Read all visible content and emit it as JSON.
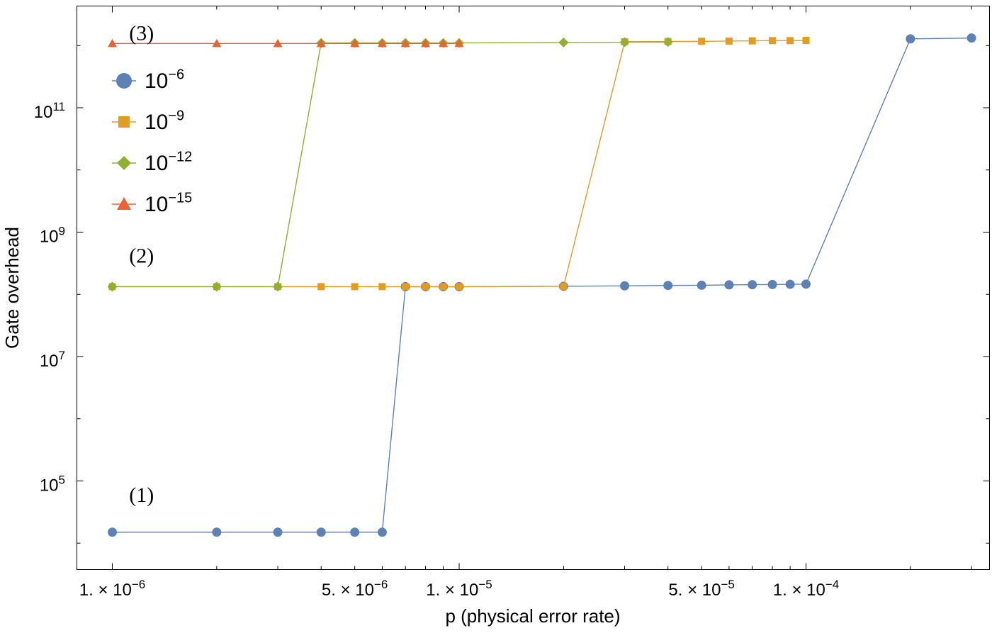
{
  "chart_data": {
    "type": "line",
    "title": "",
    "xlabel": "p (physical error rate)",
    "ylabel": "Gate overhead",
    "x_scale": "log",
    "y_scale": "log",
    "xlim": [
      9e-07,
      0.00035
    ],
    "ylim": [
      1000,
      10000000000000.0
    ],
    "grid": false,
    "legend_position": "top-left",
    "x_ticks": [
      {
        "value": 1e-06,
        "label": "1. × 10",
        "sup": "−6"
      },
      {
        "value": 5e-06,
        "label": "5. × 10",
        "sup": "−6"
      },
      {
        "value": 1e-05,
        "label": "1. × 10",
        "sup": "−5"
      },
      {
        "value": 5e-05,
        "label": "5. × 10",
        "sup": "−5"
      },
      {
        "value": 0.0001,
        "label": "1. × 10",
        "sup": "−4"
      }
    ],
    "y_ticks": [
      {
        "value": 100000.0,
        "label": "10",
        "sup": "5"
      },
      {
        "value": 10000000.0,
        "label": "10",
        "sup": "7"
      },
      {
        "value": 1000000000.0,
        "label": "10",
        "sup": "9"
      },
      {
        "value": 100000000000.0,
        "label": "10",
        "sup": "11"
      }
    ],
    "annotations": [
      {
        "text": "(1)",
        "x": 1.2e-06,
        "y": 60000.0
      },
      {
        "text": "(2)",
        "x": 1.2e-06,
        "y": 420000000.0
      },
      {
        "text": "(3)",
        "x": 1.2e-06,
        "y": 1600000000000.0
      }
    ],
    "series": [
      {
        "name": "10",
        "name_sup": "−6",
        "color": "#5E81B5",
        "marker": "circle",
        "x": [
          1e-06,
          2e-06,
          3e-06,
          4e-06,
          5e-06,
          6e-06,
          7e-06,
          8e-06,
          9e-06,
          1e-05,
          2e-05,
          3e-05,
          4e-05,
          5e-05,
          6e-05,
          7e-05,
          8e-05,
          9e-05,
          0.0001,
          0.0002,
          0.0003
        ],
        "y": [
          15000.0,
          15000.0,
          15000.0,
          15000.0,
          15000.0,
          15000.0,
          133000000.0,
          133000000.0,
          133000000.0,
          133000000.0,
          135000000.0,
          137000000.0,
          139000000.0,
          140000000.0,
          142000000.0,
          143000000.0,
          144000000.0,
          145000000.0,
          146000000.0,
          1280000000000.0,
          1320000000000.0
        ]
      },
      {
        "name": "10",
        "name_sup": "−9",
        "color": "#E19C24",
        "marker": "square",
        "x": [
          1e-06,
          2e-06,
          3e-06,
          4e-06,
          5e-06,
          6e-06,
          7e-06,
          8e-06,
          9e-06,
          1e-05,
          2e-05,
          3e-05,
          4e-05,
          5e-05,
          6e-05,
          7e-05,
          8e-05,
          9e-05,
          0.0001
        ],
        "y": [
          133000000.0,
          133000000.0,
          133000000.0,
          133000000.0,
          133000000.0,
          133000000.0,
          133000000.0,
          133000000.0,
          133000000.0,
          133000000.0,
          135000000.0,
          1150000000000.0,
          1160000000000.0,
          1170000000000.0,
          1180000000000.0,
          1190000000000.0,
          1200000000000.0,
          1200000000000.0,
          1210000000000.0
        ]
      },
      {
        "name": "10",
        "name_sup": "−12",
        "color": "#8FB032",
        "marker": "diamond",
        "x": [
          1e-06,
          2e-06,
          3e-06,
          4e-06,
          5e-06,
          6e-06,
          7e-06,
          8e-06,
          9e-06,
          1e-05,
          2e-05,
          3e-05,
          4e-05
        ],
        "y": [
          133000000.0,
          133000000.0,
          133000000.0,
          1100000000000.0,
          1100000000000.0,
          1100000000000.0,
          1100000000000.0,
          1100000000000.0,
          1100000000000.0,
          1100000000000.0,
          1120000000000.0,
          1130000000000.0,
          1140000000000.0
        ]
      },
      {
        "name": "10",
        "name_sup": "−15",
        "color": "#EB6235",
        "marker": "triangle",
        "x": [
          1e-06,
          2e-06,
          3e-06,
          4e-06,
          5e-06,
          6e-06,
          7e-06,
          8e-06,
          9e-06,
          1e-05
        ],
        "y": [
          1080000000000.0,
          1080000000000.0,
          1080000000000.0,
          1080000000000.0,
          1080000000000.0,
          1080000000000.0,
          1080000000000.0,
          1080000000000.0,
          1080000000000.0,
          1080000000000.0
        ]
      }
    ]
  }
}
